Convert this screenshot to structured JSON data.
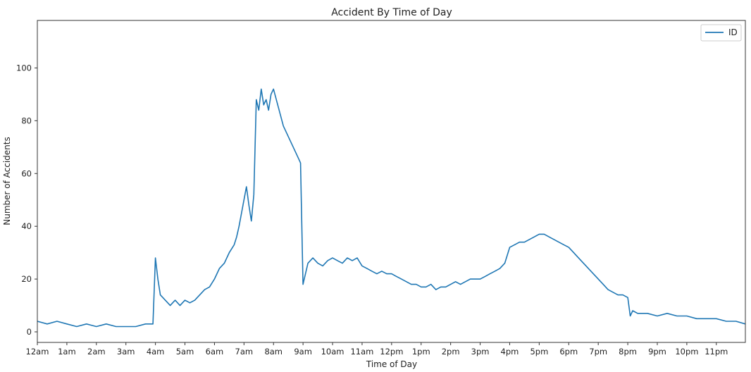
{
  "chart_data": {
    "type": "line",
    "title": "Accident By Time of Day",
    "xlabel": "Time of Day",
    "ylabel": "Number of Accidents",
    "xlim": [
      0,
      1439
    ],
    "ylim": [
      -4,
      118
    ],
    "x_unit": "minute of day",
    "x_ticks": [
      {
        "value": 0,
        "label": "12am"
      },
      {
        "value": 60,
        "label": "1am"
      },
      {
        "value": 120,
        "label": "2am"
      },
      {
        "value": 180,
        "label": "3am"
      },
      {
        "value": 240,
        "label": "4am"
      },
      {
        "value": 300,
        "label": "5am"
      },
      {
        "value": 360,
        "label": "6am"
      },
      {
        "value": 420,
        "label": "7am"
      },
      {
        "value": 480,
        "label": "8am"
      },
      {
        "value": 540,
        "label": "9am"
      },
      {
        "value": 600,
        "label": "10am"
      },
      {
        "value": 660,
        "label": "11am"
      },
      {
        "value": 720,
        "label": "12pm"
      },
      {
        "value": 780,
        "label": "1pm"
      },
      {
        "value": 840,
        "label": "2pm"
      },
      {
        "value": 900,
        "label": "3pm"
      },
      {
        "value": 960,
        "label": "4pm"
      },
      {
        "value": 1020,
        "label": "5pm"
      },
      {
        "value": 1080,
        "label": "6pm"
      },
      {
        "value": 1140,
        "label": "7pm"
      },
      {
        "value": 1200,
        "label": "8pm"
      },
      {
        "value": 1260,
        "label": "9pm"
      },
      {
        "value": 1320,
        "label": "10pm"
      },
      {
        "value": 1380,
        "label": "11pm"
      }
    ],
    "y_ticks": [
      0,
      20,
      40,
      60,
      80,
      100
    ],
    "grid": false,
    "legend": {
      "placement": "top-right",
      "entries": [
        "ID"
      ]
    },
    "series": [
      {
        "name": "ID",
        "color": "#1f77b4",
        "x": [
          0,
          20,
          40,
          60,
          80,
          100,
          120,
          140,
          160,
          180,
          200,
          220,
          235,
          240,
          245,
          250,
          260,
          270,
          280,
          290,
          300,
          310,
          320,
          330,
          340,
          350,
          360,
          370,
          380,
          390,
          400,
          405,
          410,
          415,
          420,
          425,
          430,
          435,
          440,
          445,
          450,
          455,
          460,
          465,
          470,
          475,
          480,
          490,
          500,
          510,
          520,
          530,
          535,
          540,
          545,
          550,
          560,
          570,
          580,
          590,
          600,
          610,
          620,
          630,
          640,
          650,
          660,
          670,
          680,
          690,
          700,
          710,
          720,
          730,
          740,
          750,
          760,
          770,
          780,
          790,
          800,
          810,
          820,
          830,
          840,
          850,
          860,
          870,
          880,
          890,
          900,
          910,
          920,
          930,
          940,
          950,
          960,
          970,
          980,
          990,
          1000,
          1010,
          1020,
          1030,
          1040,
          1050,
          1060,
          1070,
          1080,
          1090,
          1100,
          1110,
          1120,
          1130,
          1140,
          1150,
          1160,
          1170,
          1180,
          1190,
          1200,
          1205,
          1210,
          1220,
          1240,
          1260,
          1280,
          1300,
          1320,
          1340,
          1360,
          1380,
          1400,
          1420,
          1439
        ],
        "y": [
          4,
          3,
          4,
          3,
          2,
          3,
          2,
          3,
          2,
          2,
          2,
          3,
          3,
          28,
          20,
          14,
          12,
          10,
          12,
          10,
          12,
          11,
          12,
          14,
          16,
          17,
          20,
          24,
          26,
          30,
          33,
          36,
          40,
          45,
          50,
          55,
          48,
          42,
          52,
          88,
          84,
          92,
          86,
          88,
          84,
          90,
          92,
          85,
          78,
          74,
          70,
          66,
          64,
          18,
          22,
          26,
          28,
          26,
          25,
          27,
          28,
          27,
          26,
          28,
          27,
          28,
          25,
          24,
          23,
          22,
          23,
          22,
          22,
          21,
          20,
          19,
          18,
          18,
          17,
          17,
          18,
          16,
          17,
          17,
          18,
          19,
          18,
          19,
          20,
          20,
          20,
          21,
          22,
          23,
          24,
          26,
          32,
          33,
          34,
          34,
          35,
          36,
          37,
          37,
          36,
          35,
          34,
          33,
          32,
          30,
          28,
          26,
          24,
          22,
          20,
          18,
          16,
          15,
          14,
          14,
          13,
          6,
          8,
          7,
          7,
          6,
          7,
          6,
          6,
          5,
          5,
          5,
          4,
          4,
          3
        ]
      }
    ]
  }
}
